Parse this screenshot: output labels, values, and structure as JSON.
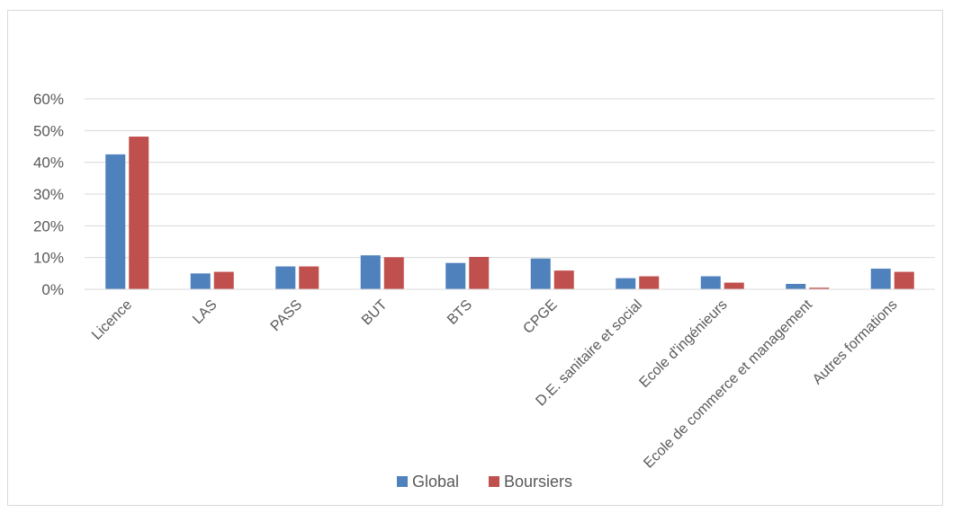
{
  "chart_data": {
    "type": "bar",
    "title": "",
    "xlabel": "",
    "ylabel": "",
    "ylim": [
      0,
      0.6
    ],
    "yticks": [
      "0%",
      "10%",
      "20%",
      "30%",
      "40%",
      "50%",
      "60%"
    ],
    "grid": true,
    "legend_position": "bottom",
    "categories": [
      "Licence",
      "LAS",
      "PASS",
      "BUT",
      "BTS",
      "CPGE",
      "D.E. sanitaire et social",
      "Ecole d'ingénieurs",
      "Ecole de commerce et management",
      "Autres formations"
    ],
    "series": [
      {
        "name": "Global",
        "color": "#4f81bd",
        "values": [
          0.425,
          0.05,
          0.072,
          0.107,
          0.083,
          0.097,
          0.035,
          0.041,
          0.017,
          0.065
        ]
      },
      {
        "name": "Boursiers",
        "color": "#c0504d",
        "values": [
          0.481,
          0.055,
          0.072,
          0.101,
          0.102,
          0.059,
          0.041,
          0.021,
          0.005,
          0.055
        ]
      }
    ]
  }
}
